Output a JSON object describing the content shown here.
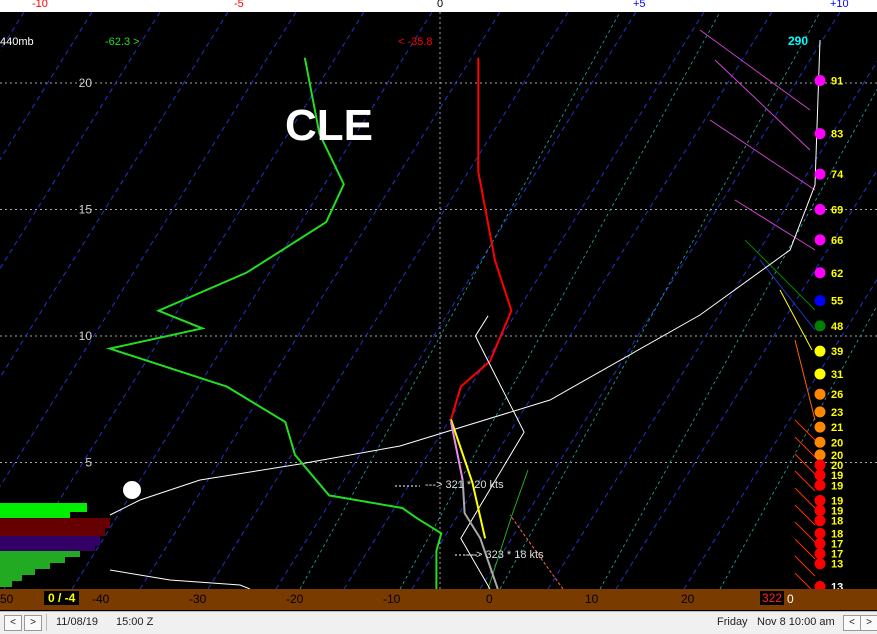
{
  "top_axis": [
    {
      "label": "-10",
      "color": "#ff0000",
      "x": 40
    },
    {
      "label": "-5",
      "color": "#ff0000",
      "x": 240
    },
    {
      "label": "0",
      "color": "#000000",
      "x": 440
    },
    {
      "label": "+5",
      "color": "#0000ff",
      "x": 640
    },
    {
      "label": "+10",
      "color": "#0000ff",
      "x": 840
    }
  ],
  "header": {
    "pressure_label": "440mb",
    "green_readout": "-62.3 >",
    "red_readout": "< -35.8",
    "cyan_readout": "290",
    "station": "CLE"
  },
  "wind_labels": [
    {
      "text": "---> 321 * 20 kts"
    },
    {
      "text": "---> 323 * 18 kts"
    }
  ],
  "bottom_bar": {
    "left_value": "50",
    "box_value": "0 / -4",
    "red_value": "322",
    "white_value": "0"
  },
  "status_bar": {
    "date": "11/08/19",
    "time": "15:00 Z",
    "day": "Friday",
    "datetime": "Nov 8  10:00 am",
    "prev_button": "<",
    "next_button": ">",
    "right_prev": "<",
    "right_next": ">"
  },
  "chart_data": {
    "type": "line",
    "title": "CLE",
    "y_axis": {
      "label": "",
      "ticks": [
        5,
        10,
        15,
        20
      ],
      "range": [
        0,
        21.5
      ]
    },
    "x_axis": {
      "ticks": [
        -40,
        -30,
        -20,
        -10,
        0,
        10,
        20
      ],
      "range": [
        -50,
        32
      ]
    },
    "series": [
      {
        "name": "temperature",
        "color": "#ff0000",
        "points": [
          [
            -1.2,
            21
          ],
          [
            -1.2,
            16.5
          ],
          [
            0.5,
            13
          ],
          [
            2.2,
            11
          ],
          [
            0,
            9
          ],
          [
            -3,
            8
          ],
          [
            -4,
            6.7
          ]
        ]
      },
      {
        "name": "dewpoint",
        "color": "#22dd22",
        "points": [
          [
            -19,
            21
          ],
          [
            -17.5,
            18
          ],
          [
            -15,
            16
          ],
          [
            -16.8,
            14.5
          ],
          [
            -25,
            12.5
          ],
          [
            -34,
            11
          ],
          [
            -29.5,
            10.3
          ],
          [
            -39,
            9.5
          ],
          [
            -27,
            8
          ],
          [
            -21,
            6.6
          ],
          [
            -20,
            5.3
          ],
          [
            -16.5,
            3.7
          ],
          [
            -9,
            3.2
          ],
          [
            -7.5,
            2.8
          ],
          [
            -5,
            2.2
          ],
          [
            -5.5,
            1.5
          ],
          [
            -5.5,
            0
          ]
        ]
      },
      {
        "name": "parcel",
        "color": "#ffffff",
        "points": [
          [
            -0.2,
            10.8
          ],
          [
            -1.5,
            10
          ],
          [
            3.5,
            6.2
          ],
          [
            -3,
            2
          ],
          [
            0,
            0
          ]
        ]
      },
      {
        "name": "lowlevel-yellow",
        "color": "#ffff00",
        "points": [
          [
            -4,
            6.7
          ],
          [
            -1.8,
            4.2
          ],
          [
            -0.5,
            2
          ]
        ]
      },
      {
        "name": "lowlevel-violet",
        "color": "#ee88ee",
        "points": [
          [
            -4,
            6.6
          ],
          [
            -2.8,
            4.3
          ]
        ]
      },
      {
        "name": "lowlevel-grey",
        "color": "#aaaaaa",
        "points": [
          [
            -2.8,
            4.3
          ],
          [
            -2.6,
            3
          ],
          [
            -1,
            2
          ],
          [
            0.8,
            0
          ]
        ]
      }
    ],
    "right_column": [
      {
        "value": "91",
        "color": "#ffff00",
        "dot": "#ff00ff",
        "h": 20.1
      },
      {
        "value": "83",
        "color": "#ffff00",
        "dot": "#ff00ff",
        "h": 18.0
      },
      {
        "value": "74",
        "color": "#ffff00",
        "dot": "#ff00ff",
        "h": 16.4
      },
      {
        "value": "69",
        "color": "#ffff00",
        "dot": "#ff00ff",
        "h": 15.0
      },
      {
        "value": "66",
        "color": "#ffff00",
        "dot": "#ff00ff",
        "h": 13.8
      },
      {
        "value": "62",
        "color": "#ffff00",
        "dot": "#ff00ff",
        "h": 12.5
      },
      {
        "value": "55",
        "color": "#ffff00",
        "dot": "#0000ff",
        "h": 11.4
      },
      {
        "value": "48",
        "color": "#ffff00",
        "dot": "#008000",
        "h": 10.4
      },
      {
        "value": "39",
        "color": "#ffff00",
        "dot": "#ffff00",
        "h": 9.4
      },
      {
        "value": "31",
        "color": "#ffff00",
        "dot": "#ffff00",
        "h": 8.5
      },
      {
        "value": "26",
        "color": "#ffff00",
        "dot": "#ff8800",
        "h": 7.7
      },
      {
        "value": "23",
        "color": "#ffff00",
        "dot": "#ff8800",
        "h": 7.0
      },
      {
        "value": "21",
        "color": "#ffff00",
        "dot": "#ff8800",
        "h": 6.4
      },
      {
        "value": "20",
        "color": "#ffff00",
        "dot": "#ff8800",
        "h": 5.8
      },
      {
        "value": "20",
        "color": "#ffff00",
        "dot": "#ff8800",
        "h": 5.3
      },
      {
        "value": "20",
        "color": "#ffff00",
        "dot": "#ff0000",
        "h": 4.9
      },
      {
        "value": "19",
        "color": "#ffff00",
        "dot": "#ff0000",
        "h": 4.5
      },
      {
        "value": "19",
        "color": "#ffff00",
        "dot": "#ff0000",
        "h": 4.1
      },
      {
        "value": "19",
        "color": "#ffff00",
        "dot": "#ff0000",
        "h": 3.5
      },
      {
        "value": "19",
        "color": "#ffff00",
        "dot": "#ff0000",
        "h": 3.1
      },
      {
        "value": "18",
        "color": "#ffff00",
        "dot": "#ff0000",
        "h": 2.7
      },
      {
        "value": "18",
        "color": "#ffff00",
        "dot": "#ff0000",
        "h": 2.2
      },
      {
        "value": "17",
        "color": "#ffff00",
        "dot": "#ff0000",
        "h": 1.8
      },
      {
        "value": "17",
        "color": "#ffff00",
        "dot": "#ff0000",
        "h": 1.4
      },
      {
        "value": "13",
        "color": "#ffff00",
        "dot": "#ff0000",
        "h": 1.0
      },
      {
        "value": "13",
        "color": "#ffffff",
        "dot": "#ff0000",
        "h": 0.1
      }
    ]
  }
}
